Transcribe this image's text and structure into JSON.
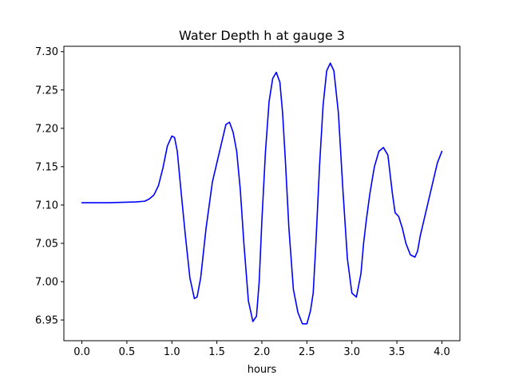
{
  "chart_data": {
    "type": "line",
    "title": "Water Depth h at gauge 3",
    "xlabel": "hours",
    "ylabel": "",
    "xlim": [
      -0.2,
      4.2
    ],
    "ylim": [
      6.923,
      7.307
    ],
    "xticks": [
      0.0,
      0.5,
      1.0,
      1.5,
      2.0,
      2.5,
      3.0,
      3.5,
      4.0
    ],
    "xtick_labels": [
      "0.0",
      "0.5",
      "1.0",
      "1.5",
      "2.0",
      "2.5",
      "3.0",
      "3.5",
      "4.0"
    ],
    "yticks": [
      6.95,
      7.0,
      7.05,
      7.1,
      7.15,
      7.2,
      7.25,
      7.3
    ],
    "ytick_labels": [
      "6.95",
      "7.00",
      "7.05",
      "7.10",
      "7.15",
      "7.20",
      "7.25",
      "7.30"
    ],
    "grid": false,
    "series": [
      {
        "color": "#0000ff",
        "x": [
          0.0,
          0.3,
          0.6,
          0.7,
          0.75,
          0.8,
          0.85,
          0.9,
          0.95,
          1.0,
          1.03,
          1.06,
          1.1,
          1.15,
          1.2,
          1.25,
          1.28,
          1.32,
          1.38,
          1.45,
          1.5,
          1.55,
          1.6,
          1.64,
          1.68,
          1.72,
          1.76,
          1.8,
          1.85,
          1.9,
          1.94,
          1.97,
          2.0,
          2.04,
          2.08,
          2.12,
          2.16,
          2.2,
          2.23,
          2.26,
          2.3,
          2.35,
          2.4,
          2.45,
          2.5,
          2.54,
          2.57,
          2.6,
          2.64,
          2.68,
          2.72,
          2.76,
          2.8,
          2.85,
          2.9,
          2.95,
          3.0,
          3.05,
          3.1,
          3.13,
          3.16,
          3.2,
          3.25,
          3.3,
          3.35,
          3.4,
          3.45,
          3.48,
          3.52,
          3.56,
          3.6,
          3.65,
          3.7,
          3.73,
          3.76,
          3.8,
          3.85,
          3.9,
          3.95,
          4.0
        ],
        "y": [
          7.103,
          7.103,
          7.104,
          7.105,
          7.108,
          7.113,
          7.125,
          7.148,
          7.177,
          7.19,
          7.188,
          7.17,
          7.12,
          7.06,
          7.005,
          6.978,
          6.98,
          7.005,
          7.07,
          7.13,
          7.155,
          7.18,
          7.205,
          7.208,
          7.195,
          7.17,
          7.12,
          7.05,
          6.975,
          6.948,
          6.955,
          7.0,
          7.08,
          7.17,
          7.235,
          7.265,
          7.273,
          7.26,
          7.22,
          7.16,
          7.07,
          6.99,
          6.96,
          6.945,
          6.945,
          6.962,
          6.985,
          7.05,
          7.15,
          7.23,
          7.275,
          7.285,
          7.275,
          7.22,
          7.12,
          7.03,
          6.985,
          6.98,
          7.01,
          7.05,
          7.08,
          7.115,
          7.15,
          7.17,
          7.175,
          7.165,
          7.115,
          7.09,
          7.085,
          7.07,
          7.05,
          7.035,
          7.032,
          7.04,
          7.06,
          7.08,
          7.105,
          7.13,
          7.155,
          7.17
        ]
      }
    ]
  }
}
